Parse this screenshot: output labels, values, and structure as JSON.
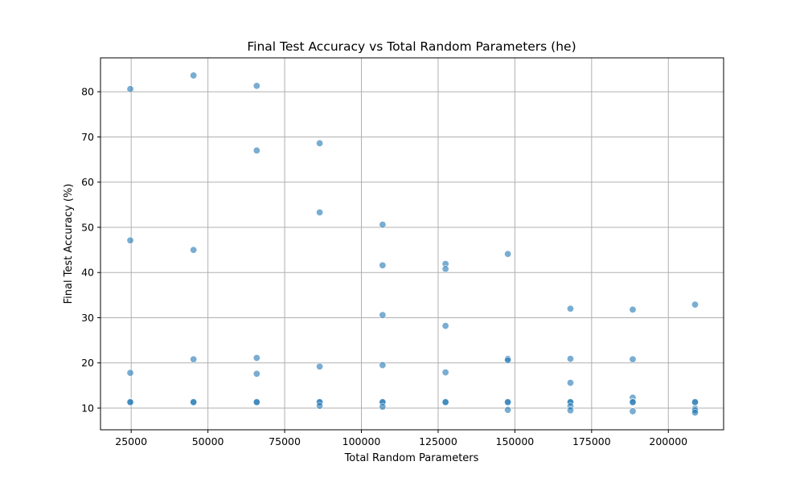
{
  "chart_data": {
    "type": "scatter",
    "title": "Final Test Accuracy vs Total Random Parameters (he)",
    "xlabel": "Total Random Parameters",
    "ylabel": "Final Test Accuracy (%)",
    "xlim": [
      15000,
      218000
    ],
    "ylim": [
      5.2,
      87.5
    ],
    "xticks": [
      25000,
      50000,
      75000,
      100000,
      125000,
      150000,
      175000,
      200000
    ],
    "yticks": [
      10,
      20,
      30,
      40,
      50,
      60,
      70,
      80
    ],
    "grid": true,
    "marker_color": "#1f77b4",
    "marker_alpha": 0.6,
    "points": [
      {
        "x": 24700,
        "y": 80.6
      },
      {
        "x": 24700,
        "y": 47.1
      },
      {
        "x": 24700,
        "y": 17.8
      },
      {
        "x": 24700,
        "y": 11.4
      },
      {
        "x": 24700,
        "y": 11.3
      },
      {
        "x": 45300,
        "y": 83.6
      },
      {
        "x": 45300,
        "y": 45.0
      },
      {
        "x": 45300,
        "y": 20.8
      },
      {
        "x": 45300,
        "y": 11.4
      },
      {
        "x": 45300,
        "y": 11.3
      },
      {
        "x": 65900,
        "y": 81.3
      },
      {
        "x": 65900,
        "y": 67.0
      },
      {
        "x": 65900,
        "y": 21.1
      },
      {
        "x": 65900,
        "y": 17.6
      },
      {
        "x": 65900,
        "y": 11.4
      },
      {
        "x": 65900,
        "y": 11.3
      },
      {
        "x": 86400,
        "y": 68.6
      },
      {
        "x": 86400,
        "y": 53.3
      },
      {
        "x": 86400,
        "y": 19.2
      },
      {
        "x": 86400,
        "y": 11.4
      },
      {
        "x": 86400,
        "y": 11.3
      },
      {
        "x": 86400,
        "y": 10.5
      },
      {
        "x": 106900,
        "y": 50.6
      },
      {
        "x": 106900,
        "y": 41.6
      },
      {
        "x": 106900,
        "y": 30.6
      },
      {
        "x": 106900,
        "y": 19.5
      },
      {
        "x": 106900,
        "y": 11.4
      },
      {
        "x": 106900,
        "y": 11.3
      },
      {
        "x": 106900,
        "y": 10.3
      },
      {
        "x": 127400,
        "y": 41.9
      },
      {
        "x": 127400,
        "y": 40.8
      },
      {
        "x": 127400,
        "y": 28.2
      },
      {
        "x": 127400,
        "y": 17.9
      },
      {
        "x": 127400,
        "y": 11.4
      },
      {
        "x": 127400,
        "y": 11.3
      },
      {
        "x": 147700,
        "y": 44.1
      },
      {
        "x": 147700,
        "y": 20.9
      },
      {
        "x": 147700,
        "y": 20.6
      },
      {
        "x": 147700,
        "y": 11.4
      },
      {
        "x": 147700,
        "y": 11.3
      },
      {
        "x": 147700,
        "y": 9.6
      },
      {
        "x": 168100,
        "y": 32.0
      },
      {
        "x": 168100,
        "y": 20.9
      },
      {
        "x": 168100,
        "y": 15.6
      },
      {
        "x": 168100,
        "y": 11.4
      },
      {
        "x": 168100,
        "y": 11.3
      },
      {
        "x": 168100,
        "y": 10.4
      },
      {
        "x": 168100,
        "y": 9.5
      },
      {
        "x": 188400,
        "y": 31.8
      },
      {
        "x": 188400,
        "y": 20.8
      },
      {
        "x": 188400,
        "y": 12.3
      },
      {
        "x": 188400,
        "y": 11.4
      },
      {
        "x": 188400,
        "y": 11.3
      },
      {
        "x": 188400,
        "y": 9.3
      },
      {
        "x": 208700,
        "y": 32.9
      },
      {
        "x": 208700,
        "y": 11.4
      },
      {
        "x": 208700,
        "y": 11.3
      },
      {
        "x": 208700,
        "y": 9.9
      },
      {
        "x": 208700,
        "y": 9.5
      },
      {
        "x": 208700,
        "y": 9.0
      }
    ]
  }
}
